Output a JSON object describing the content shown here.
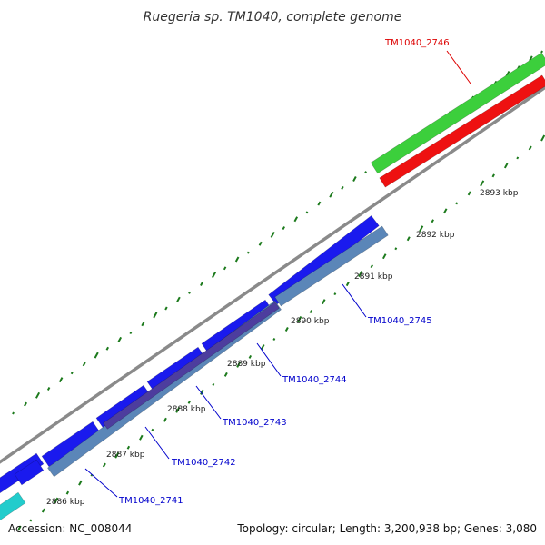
{
  "title": "Ruegeria sp. TM1040, complete genome",
  "footer": {
    "accession": "Accession: NC_008044",
    "summary": "Topology: circular; Length: 3,200,938 bp; Genes: 3,080"
  },
  "colors": {
    "backbone": "#8a8a8a",
    "forward_cds": "#1a1aee",
    "reverse_cds": "#5b86b8",
    "highlight_forward": "#3ccf3c",
    "highlight_reverse": "#ee1111",
    "rna": "#22cccc",
    "gc_tick": "#1c7a1c",
    "label_blue": "#0000cc",
    "label_red": "#dd0000"
  },
  "kbp_labels": [
    "2886 kbp",
    "2887 kbp",
    "2888 kbp",
    "2889 kbp",
    "2890 kbp",
    "2891 kbp",
    "2892 kbp",
    "2893 kbp"
  ],
  "gene_labels": [
    {
      "name": "TM1040_2741",
      "color": "label_blue"
    },
    {
      "name": "TM1040_2742",
      "color": "label_blue"
    },
    {
      "name": "TM1040_2743",
      "color": "label_blue"
    },
    {
      "name": "TM1040_2744",
      "color": "label_blue"
    },
    {
      "name": "TM1040_2745",
      "color": "label_blue"
    },
    {
      "name": "TM1040_2746",
      "color": "label_red"
    }
  ]
}
